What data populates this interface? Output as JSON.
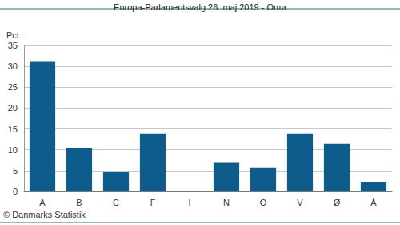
{
  "chart_data": {
    "type": "bar",
    "title": "Europa-Parlamentsvalg 26. maj 2019 - Omø",
    "ylabel": "Pct.",
    "annotations": [
      "© Danmarks Statistik"
    ],
    "categories": [
      "A",
      "B",
      "C",
      "F",
      "I",
      "N",
      "O",
      "V",
      "Ø",
      "Å"
    ],
    "values": [
      31.1,
      10.5,
      4.7,
      13.8,
      0,
      7.0,
      5.8,
      13.8,
      11.5,
      2.3
    ],
    "color": "#0e5c8c",
    "ylim": [
      0,
      35
    ],
    "yticks": [
      0,
      5,
      10,
      15,
      20,
      25,
      30,
      35
    ],
    "grid": true
  }
}
